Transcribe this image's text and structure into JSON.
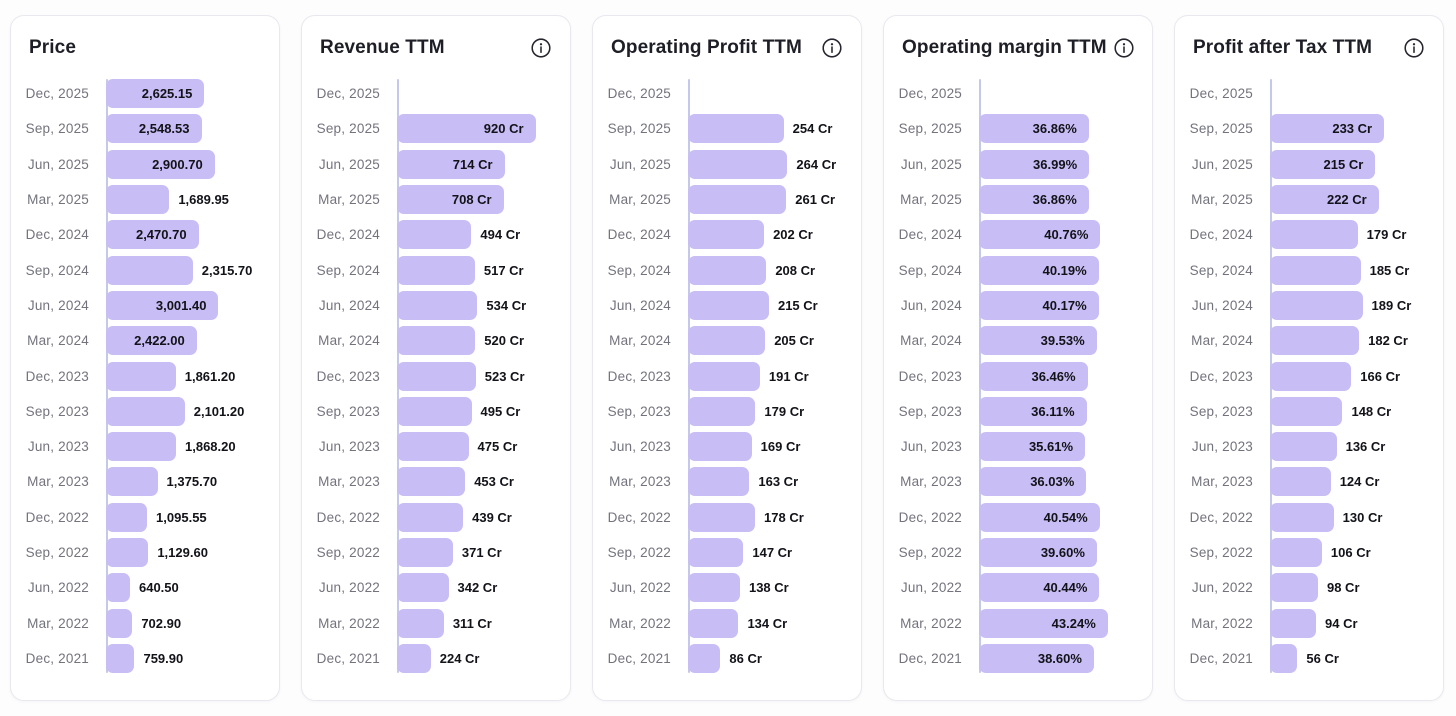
{
  "colors": {
    "page_bg": "#fdfdfe",
    "card_bg": "#ffffff",
    "card_border": "#e8e8ee",
    "title": "#1e1f26",
    "date_label": "#73737d",
    "value_label": "#121319",
    "bar": "#c9bdf5",
    "axis_line": "#c4c8ea",
    "info_icon": "#26262e"
  },
  "icons": {
    "info": "info-circle-icon"
  },
  "categories": [
    "Dec, 2025",
    "Sep, 2025",
    "Jun, 2025",
    "Mar, 2025",
    "Dec, 2024",
    "Sep, 2024",
    "Jun, 2024",
    "Mar, 2024",
    "Dec, 2023",
    "Sep, 2023",
    "Jun, 2023",
    "Mar, 2023",
    "Dec, 2022",
    "Sep, 2022",
    "Jun, 2022",
    "Mar, 2022",
    "Dec, 2021"
  ],
  "chart_data": [
    {
      "type": "bar",
      "orientation": "horizontal",
      "title": "Price",
      "show_info_icon": false,
      "unit": "",
      "legend": "none",
      "grid": "off",
      "categories": [
        "Dec, 2025",
        "Sep, 2025",
        "Jun, 2025",
        "Mar, 2025",
        "Dec, 2024",
        "Sep, 2024",
        "Jun, 2024",
        "Mar, 2024",
        "Dec, 2023",
        "Sep, 2023",
        "Jun, 2023",
        "Mar, 2023",
        "Dec, 2022",
        "Sep, 2022",
        "Jun, 2022",
        "Mar, 2022",
        "Dec, 2021"
      ],
      "values": [
        2625.15,
        2548.53,
        2900.7,
        1689.95,
        2470.7,
        2315.7,
        3001.4,
        2422.0,
        1861.2,
        2101.2,
        1868.2,
        1375.7,
        1095.55,
        1129.6,
        640.5,
        702.9,
        759.9
      ],
      "value_labels": [
        "2,625.15",
        "2,548.53",
        "2,900.70",
        "1,689.95",
        "2,470.70",
        "2,315.70",
        "3,001.40",
        "2,422.00",
        "1,861.20",
        "2,101.20",
        "1,868.20",
        "1,375.70",
        "1,095.55",
        "1,129.60",
        "640.50",
        "702.90",
        "759.90"
      ],
      "label_positions": [
        "in",
        "in",
        "in",
        "out",
        "in",
        "out",
        "in",
        "in",
        "out",
        "out",
        "out",
        "out",
        "out",
        "out",
        "out",
        "out",
        "out"
      ],
      "scale": {
        "max_value": 3001.4,
        "max_bar_pct": 69
      }
    },
    {
      "type": "bar",
      "orientation": "horizontal",
      "title": "Revenue TTM",
      "show_info_icon": true,
      "unit": "Cr",
      "legend": "none",
      "grid": "off",
      "categories": [
        "Dec, 2025",
        "Sep, 2025",
        "Jun, 2025",
        "Mar, 2025",
        "Dec, 2024",
        "Sep, 2024",
        "Jun, 2024",
        "Mar, 2024",
        "Dec, 2023",
        "Sep, 2023",
        "Jun, 2023",
        "Mar, 2023",
        "Dec, 2022",
        "Sep, 2022",
        "Jun, 2022",
        "Mar, 2022",
        "Dec, 2021"
      ],
      "values": [
        null,
        920,
        714,
        708,
        494,
        517,
        534,
        520,
        523,
        495,
        475,
        453,
        439,
        371,
        342,
        311,
        224
      ],
      "value_labels": [
        null,
        "920 Cr",
        "714 Cr",
        "708 Cr",
        "494 Cr",
        "517 Cr",
        "534 Cr",
        "520 Cr",
        "523 Cr",
        "495 Cr",
        "475 Cr",
        "453 Cr",
        "439 Cr",
        "371 Cr",
        "342 Cr",
        "311 Cr",
        "224 Cr"
      ],
      "label_positions": [
        null,
        "in",
        "in",
        "in",
        "out",
        "out",
        "out",
        "out",
        "out",
        "out",
        "out",
        "out",
        "out",
        "out",
        "out",
        "out",
        "out"
      ],
      "scale": {
        "max_value": 920,
        "max_bar_pct": 85
      }
    },
    {
      "type": "bar",
      "orientation": "horizontal",
      "title": "Operating Profit TTM",
      "show_info_icon": true,
      "unit": "Cr",
      "legend": "none",
      "grid": "off",
      "categories": [
        "Dec, 2025",
        "Sep, 2025",
        "Jun, 2025",
        "Mar, 2025",
        "Dec, 2024",
        "Sep, 2024",
        "Jun, 2024",
        "Mar, 2024",
        "Dec, 2023",
        "Sep, 2023",
        "Jun, 2023",
        "Mar, 2023",
        "Dec, 2022",
        "Sep, 2022",
        "Jun, 2022",
        "Mar, 2022",
        "Dec, 2021"
      ],
      "values": [
        null,
        254,
        264,
        261,
        202,
        208,
        215,
        205,
        191,
        179,
        169,
        163,
        178,
        147,
        138,
        134,
        86
      ],
      "value_labels": [
        null,
        "254 Cr",
        "264 Cr",
        "261 Cr",
        "202 Cr",
        "208 Cr",
        "215 Cr",
        "205 Cr",
        "191 Cr",
        "179 Cr",
        "169 Cr",
        "163 Cr",
        "178 Cr",
        "147 Cr",
        "138 Cr",
        "134 Cr",
        "86 Cr"
      ],
      "label_positions": [
        null,
        "out",
        "out",
        "out",
        "out",
        "out",
        "out",
        "out",
        "out",
        "out",
        "out",
        "out",
        "out",
        "out",
        "out",
        "out",
        "out"
      ],
      "scale": {
        "max_value": 264,
        "max_bar_pct": 61
      }
    },
    {
      "type": "bar",
      "orientation": "horizontal",
      "title": "Operating margin TTM",
      "show_info_icon": true,
      "unit": "%",
      "legend": "none",
      "grid": "off",
      "categories": [
        "Dec, 2025",
        "Sep, 2025",
        "Jun, 2025",
        "Mar, 2025",
        "Dec, 2024",
        "Sep, 2024",
        "Jun, 2024",
        "Mar, 2024",
        "Dec, 2023",
        "Sep, 2023",
        "Jun, 2023",
        "Mar, 2023",
        "Dec, 2022",
        "Sep, 2022",
        "Jun, 2022",
        "Mar, 2022",
        "Dec, 2021"
      ],
      "values": [
        null,
        36.86,
        36.99,
        36.86,
        40.76,
        40.19,
        40.17,
        39.53,
        36.46,
        36.11,
        35.61,
        36.03,
        40.54,
        39.6,
        40.44,
        43.24,
        38.6
      ],
      "value_labels": [
        null,
        "36.86%",
        "36.99%",
        "36.86%",
        "40.76%",
        "40.19%",
        "40.17%",
        "39.53%",
        "36.46%",
        "36.11%",
        "35.61%",
        "36.03%",
        "40.54%",
        "39.60%",
        "40.44%",
        "43.24%",
        "38.60%"
      ],
      "label_positions": [
        null,
        "in",
        "in",
        "in",
        "in",
        "in",
        "in",
        "in",
        "in",
        "in",
        "in",
        "in",
        "in",
        "in",
        "in",
        "in",
        "in"
      ],
      "scale": {
        "max_value": 43.24,
        "max_bar_pct": 79
      }
    },
    {
      "type": "bar",
      "orientation": "horizontal",
      "title": "Profit after Tax TTM",
      "show_info_icon": true,
      "unit": "Cr",
      "legend": "none",
      "grid": "off",
      "categories": [
        "Dec, 2025",
        "Sep, 2025",
        "Jun, 2025",
        "Mar, 2025",
        "Dec, 2024",
        "Sep, 2024",
        "Jun, 2024",
        "Mar, 2024",
        "Dec, 2023",
        "Sep, 2023",
        "Jun, 2023",
        "Mar, 2023",
        "Dec, 2022",
        "Sep, 2022",
        "Jun, 2022",
        "Mar, 2022",
        "Dec, 2021"
      ],
      "values": [
        null,
        233,
        215,
        222,
        179,
        185,
        189,
        182,
        166,
        148,
        136,
        124,
        130,
        106,
        98,
        94,
        56
      ],
      "value_labels": [
        null,
        "233 Cr",
        "215 Cr",
        "222 Cr",
        "179 Cr",
        "185 Cr",
        "189 Cr",
        "182 Cr",
        "166 Cr",
        "148 Cr",
        "136 Cr",
        "124 Cr",
        "130 Cr",
        "106 Cr",
        "98 Cr",
        "94 Cr",
        "56 Cr"
      ],
      "label_positions": [
        null,
        "in",
        "in",
        "in",
        "out",
        "out",
        "out",
        "out",
        "out",
        "out",
        "out",
        "out",
        "out",
        "out",
        "out",
        "out",
        "out"
      ],
      "scale": {
        "max_value": 233,
        "max_bar_pct": 70
      }
    }
  ]
}
